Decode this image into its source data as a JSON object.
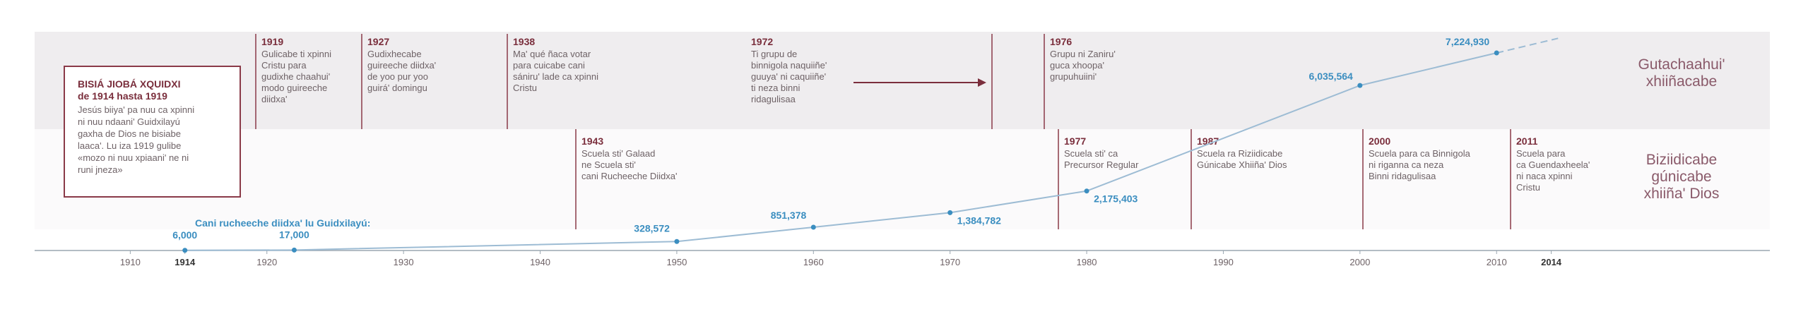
{
  "chart_data": {
    "type": "line",
    "series_label": "Cani rucheeche diidxa' lu Guidxilayú:",
    "x": [
      1914,
      1922,
      1950,
      1960,
      1970,
      1980,
      2000,
      2010
    ],
    "values": [
      6000,
      17000,
      328572,
      851378,
      1384782,
      2175403,
      6035564,
      7224930
    ],
    "value_labels": [
      "6,000",
      "17,000",
      "328,572",
      "851,378",
      "1,384,782",
      "2,175,403",
      "6,035,564",
      "7,224,930"
    ],
    "color": "#3b8ec0",
    "xlim": [
      1903,
      2030
    ],
    "xticks": [
      1910,
      1914,
      1920,
      1930,
      1940,
      1950,
      1960,
      1970,
      1980,
      1990,
      2000,
      2010,
      2014
    ],
    "ylim": [
      0,
      8000000
    ]
  },
  "intro": {
    "title_lines": [
      "BISIÁ JIOBÁ XQUIDXI",
      "de 1914 hasta 1919"
    ],
    "body_lines": [
      "Jesús biiya' pa nuu ca xpinni",
      "ni nuu ndaani' Guidxilayú",
      "gaxha de Dios ne bisiabe",
      "laaca'. Lu iza 1919 gulibe",
      "«mozo ni nuu xpiaani' ne ni",
      "runi jneza»"
    ]
  },
  "bands": [
    {
      "label_lines": [
        "Gutachaahui'",
        "xhiiñacabe"
      ]
    },
    {
      "label_lines": [
        "Biziidicabe",
        "gúnicabe",
        "xhiiña' Dios"
      ]
    }
  ],
  "events": {
    "top": [
      {
        "year": 1919,
        "lines": [
          "Gulicabe ti xpinni",
          "Cristu para",
          "gudixhe chaahui'",
          "modo guireeche",
          "diidxa'"
        ]
      },
      {
        "year": 1927,
        "lines": [
          "Gudixhecabe",
          "guireeche diidxa'",
          "de yoo pur yoo",
          "guirá' domingu"
        ]
      },
      {
        "year": 1938,
        "lines": [
          "Ma' qué ñaca votar",
          "para cuicabe cani",
          "sániru' lade ca xpinni",
          "Cristu"
        ]
      },
      {
        "year": 1972,
        "lines": [
          "Ti grupu de",
          "binnigola naquiiñe'",
          "guuya' ni caquiiñe'",
          "ti neza binni",
          "ridagulisaa"
        ]
      },
      {
        "year": 1976,
        "lines": [
          "Grupu ni Zaniru'",
          "guca xhoopa'",
          "grupuhuiini'"
        ]
      }
    ],
    "bottom": [
      {
        "year": 1943,
        "lines": [
          "Scuela sti' Galaad",
          "ne Scuela sti'",
          "cani Rucheeche Diidxa'"
        ]
      },
      {
        "year": 1977,
        "lines": [
          "Scuela sti' ca",
          "Precursor Regular"
        ]
      },
      {
        "year": 1987,
        "lines": [
          "Scuela ra Riziidicabe",
          "Gúnicabe Xhiiña' Dios"
        ]
      },
      {
        "year": 2000,
        "lines": [
          "Scuela para ca Binnigola",
          "ni riganna ca neza",
          "Binni ridagulisaa"
        ]
      },
      {
        "year": 2011,
        "lines": [
          "Scuela para",
          "ca Guendaxheela'",
          "ni naca xpinni",
          "Cristu"
        ]
      }
    ]
  }
}
